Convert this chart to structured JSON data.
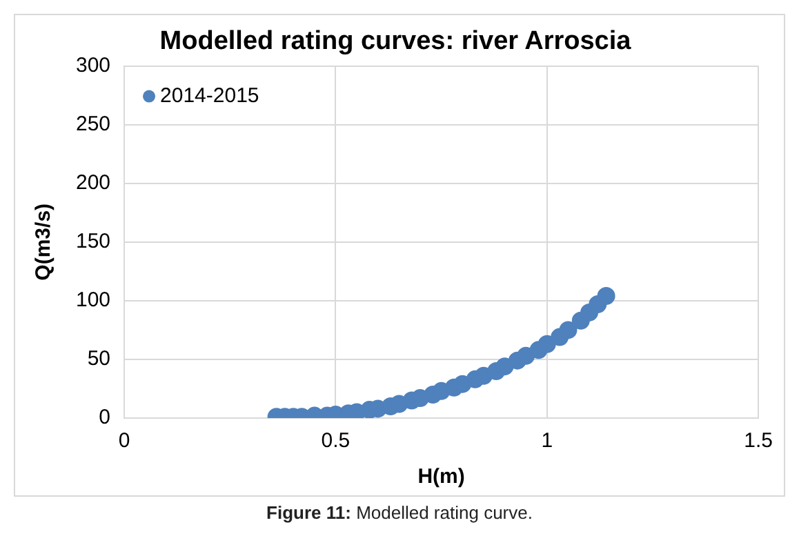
{
  "chart_data": {
    "type": "scatter",
    "title": "Modelled rating curves: river Arroscia",
    "xlabel": "H(m)",
    "ylabel": "Q(m3/s)",
    "series": [
      {
        "name": "2014-2015",
        "color": "#4f81bd",
        "x": [
          0.36,
          0.38,
          0.4,
          0.42,
          0.45,
          0.48,
          0.5,
          0.53,
          0.55,
          0.58,
          0.6,
          0.63,
          0.65,
          0.68,
          0.7,
          0.73,
          0.75,
          0.78,
          0.8,
          0.83,
          0.85,
          0.88,
          0.9,
          0.93,
          0.95,
          0.98,
          1.0,
          1.03,
          1.05,
          1.08,
          1.1,
          1.12,
          1.14
        ],
        "values": [
          1,
          1,
          1,
          1,
          2,
          2,
          3,
          4,
          5,
          7,
          8,
          10,
          12,
          15,
          17,
          20,
          23,
          26,
          29,
          33,
          36,
          40,
          44,
          49,
          53,
          58,
          63,
          69,
          75,
          83,
          90,
          97,
          104
        ]
      }
    ],
    "xlim": [
      0,
      1.5
    ],
    "xticks": [
      0,
      0.5,
      1,
      1.5
    ],
    "ylim": [
      0,
      300
    ],
    "yticks": [
      0,
      50,
      100,
      150,
      200,
      250,
      300
    ],
    "grid": true,
    "legend": "top left",
    "marker": "circle",
    "annotations": [
      "Figure 11: Modelled rating curve."
    ]
  }
}
